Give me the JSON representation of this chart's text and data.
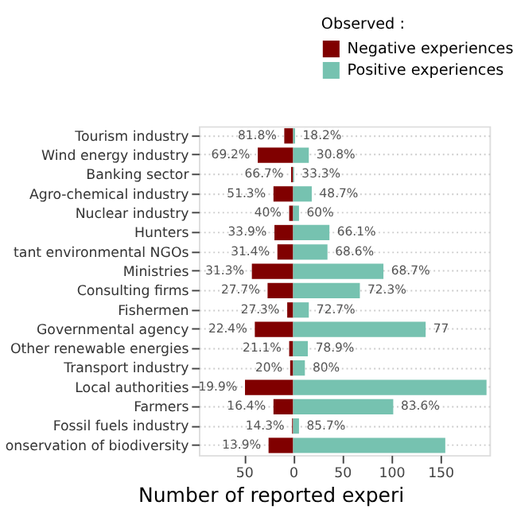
{
  "chart_data": {
    "type": "bar",
    "orientation": "horizontal",
    "stacked": true,
    "xlabel": "Number of reported experi",
    "legend_title": "Observed :",
    "legend": "top right",
    "grid": "y",
    "categories": [
      "Tourism industry",
      "Wind energy industry",
      "Banking sector",
      "Agro-chemical industry",
      "Nuclear industry",
      "Hunters",
      "tant environmental NGOs",
      "Ministries",
      "Consulting firms",
      "Fishermen",
      "Governmental agency",
      "Other renewable energies",
      "Transport industry",
      "Local authorities",
      "Farmers",
      "Fossil fuels industry",
      "onservation of biodiversity"
    ],
    "xlim": [
      -96,
      200
    ],
    "xticks": [
      {
        "value": -50,
        "label": "50"
      },
      0,
      50,
      100,
      150
    ],
    "series": [
      {
        "name": "Negative experiences",
        "color": "#800000",
        "values": [
          -9,
          -36,
          -2,
          -20,
          -4,
          -19,
          -16,
          -42,
          -26,
          -6,
          -39,
          -4,
          -3,
          -49,
          -20,
          -1,
          -25
        ]
      },
      {
        "name": "Positive experiences",
        "color": "#76c2b0",
        "values": [
          2,
          16,
          1,
          19,
          6,
          37,
          35,
          92,
          68,
          16,
          135,
          15,
          12,
          197,
          102,
          6,
          155
        ]
      }
    ],
    "annotations": [
      {
        "text": "81.8%",
        "x": -9,
        "y": "Tourism industry"
      },
      {
        "text": "69.2%",
        "x": -36,
        "y": "Wind energy industry"
      },
      {
        "text": "66.7%",
        "x": -2,
        "y": "Banking sector"
      },
      {
        "text": "51.3%",
        "x": -20,
        "y": "Agro-chemical industry"
      },
      {
        "text": "40%",
        "x": -4,
        "y": "Nuclear industry"
      },
      {
        "text": "33.9%",
        "x": -19,
        "y": "Hunters"
      },
      {
        "text": "31.4%",
        "x": -16,
        "y": "tant environmental NGOs"
      },
      {
        "text": "31.3%",
        "x": -42,
        "y": "Ministries"
      },
      {
        "text": "27.7%",
        "x": -26,
        "y": "Consulting firms"
      },
      {
        "text": "27.3%",
        "x": -6,
        "y": "Fishermen"
      },
      {
        "text": "22.4%",
        "x": -39,
        "y": "Governmental agency"
      },
      {
        "text": "21.1%",
        "x": -4,
        "y": "Other renewable energies"
      },
      {
        "text": "20%",
        "x": -3,
        "y": "Transport industry"
      },
      {
        "text": "19.9%",
        "x": -49,
        "y": "Local authorities"
      },
      {
        "text": "16.4%",
        "x": -20,
        "y": "Farmers"
      },
      {
        "text": "14.3%",
        "x": -1,
        "y": "Fossil fuels industry"
      },
      {
        "text": "13.9%",
        "x": -25,
        "y": "onservation of biodiversity"
      },
      {
        "text": "18.2%",
        "x": 2,
        "y": "Tourism industry"
      },
      {
        "text": "30.8%",
        "x": 16,
        "y": "Wind energy industry"
      },
      {
        "text": "33.3%",
        "x": 1,
        "y": "Banking sector"
      },
      {
        "text": "48.7%",
        "x": 19,
        "y": "Agro-chemical industry"
      },
      {
        "text": "60%",
        "x": 6,
        "y": "Nuclear industry"
      },
      {
        "text": "66.1%",
        "x": 37,
        "y": "Hunters"
      },
      {
        "text": "68.6%",
        "x": 35,
        "y": "tant environmental NGOs"
      },
      {
        "text": "68.7%",
        "x": 92,
        "y": "Ministries"
      },
      {
        "text": "72.3%",
        "x": 68,
        "y": "Consulting firms"
      },
      {
        "text": "72.7%",
        "x": 16,
        "y": "Fishermen"
      },
      {
        "text": "77",
        "x": 135,
        "y": "Governmental agency"
      },
      {
        "text": "78.9%",
        "x": 15,
        "y": "Other renewable energies"
      },
      {
        "text": "80%",
        "x": 12,
        "y": "Transport industry"
      },
      {
        "text": "83.6%",
        "x": 102,
        "y": "Farmers"
      },
      {
        "text": "85.7%",
        "x": 6,
        "y": "Fossil fuels industry"
      }
    ]
  }
}
